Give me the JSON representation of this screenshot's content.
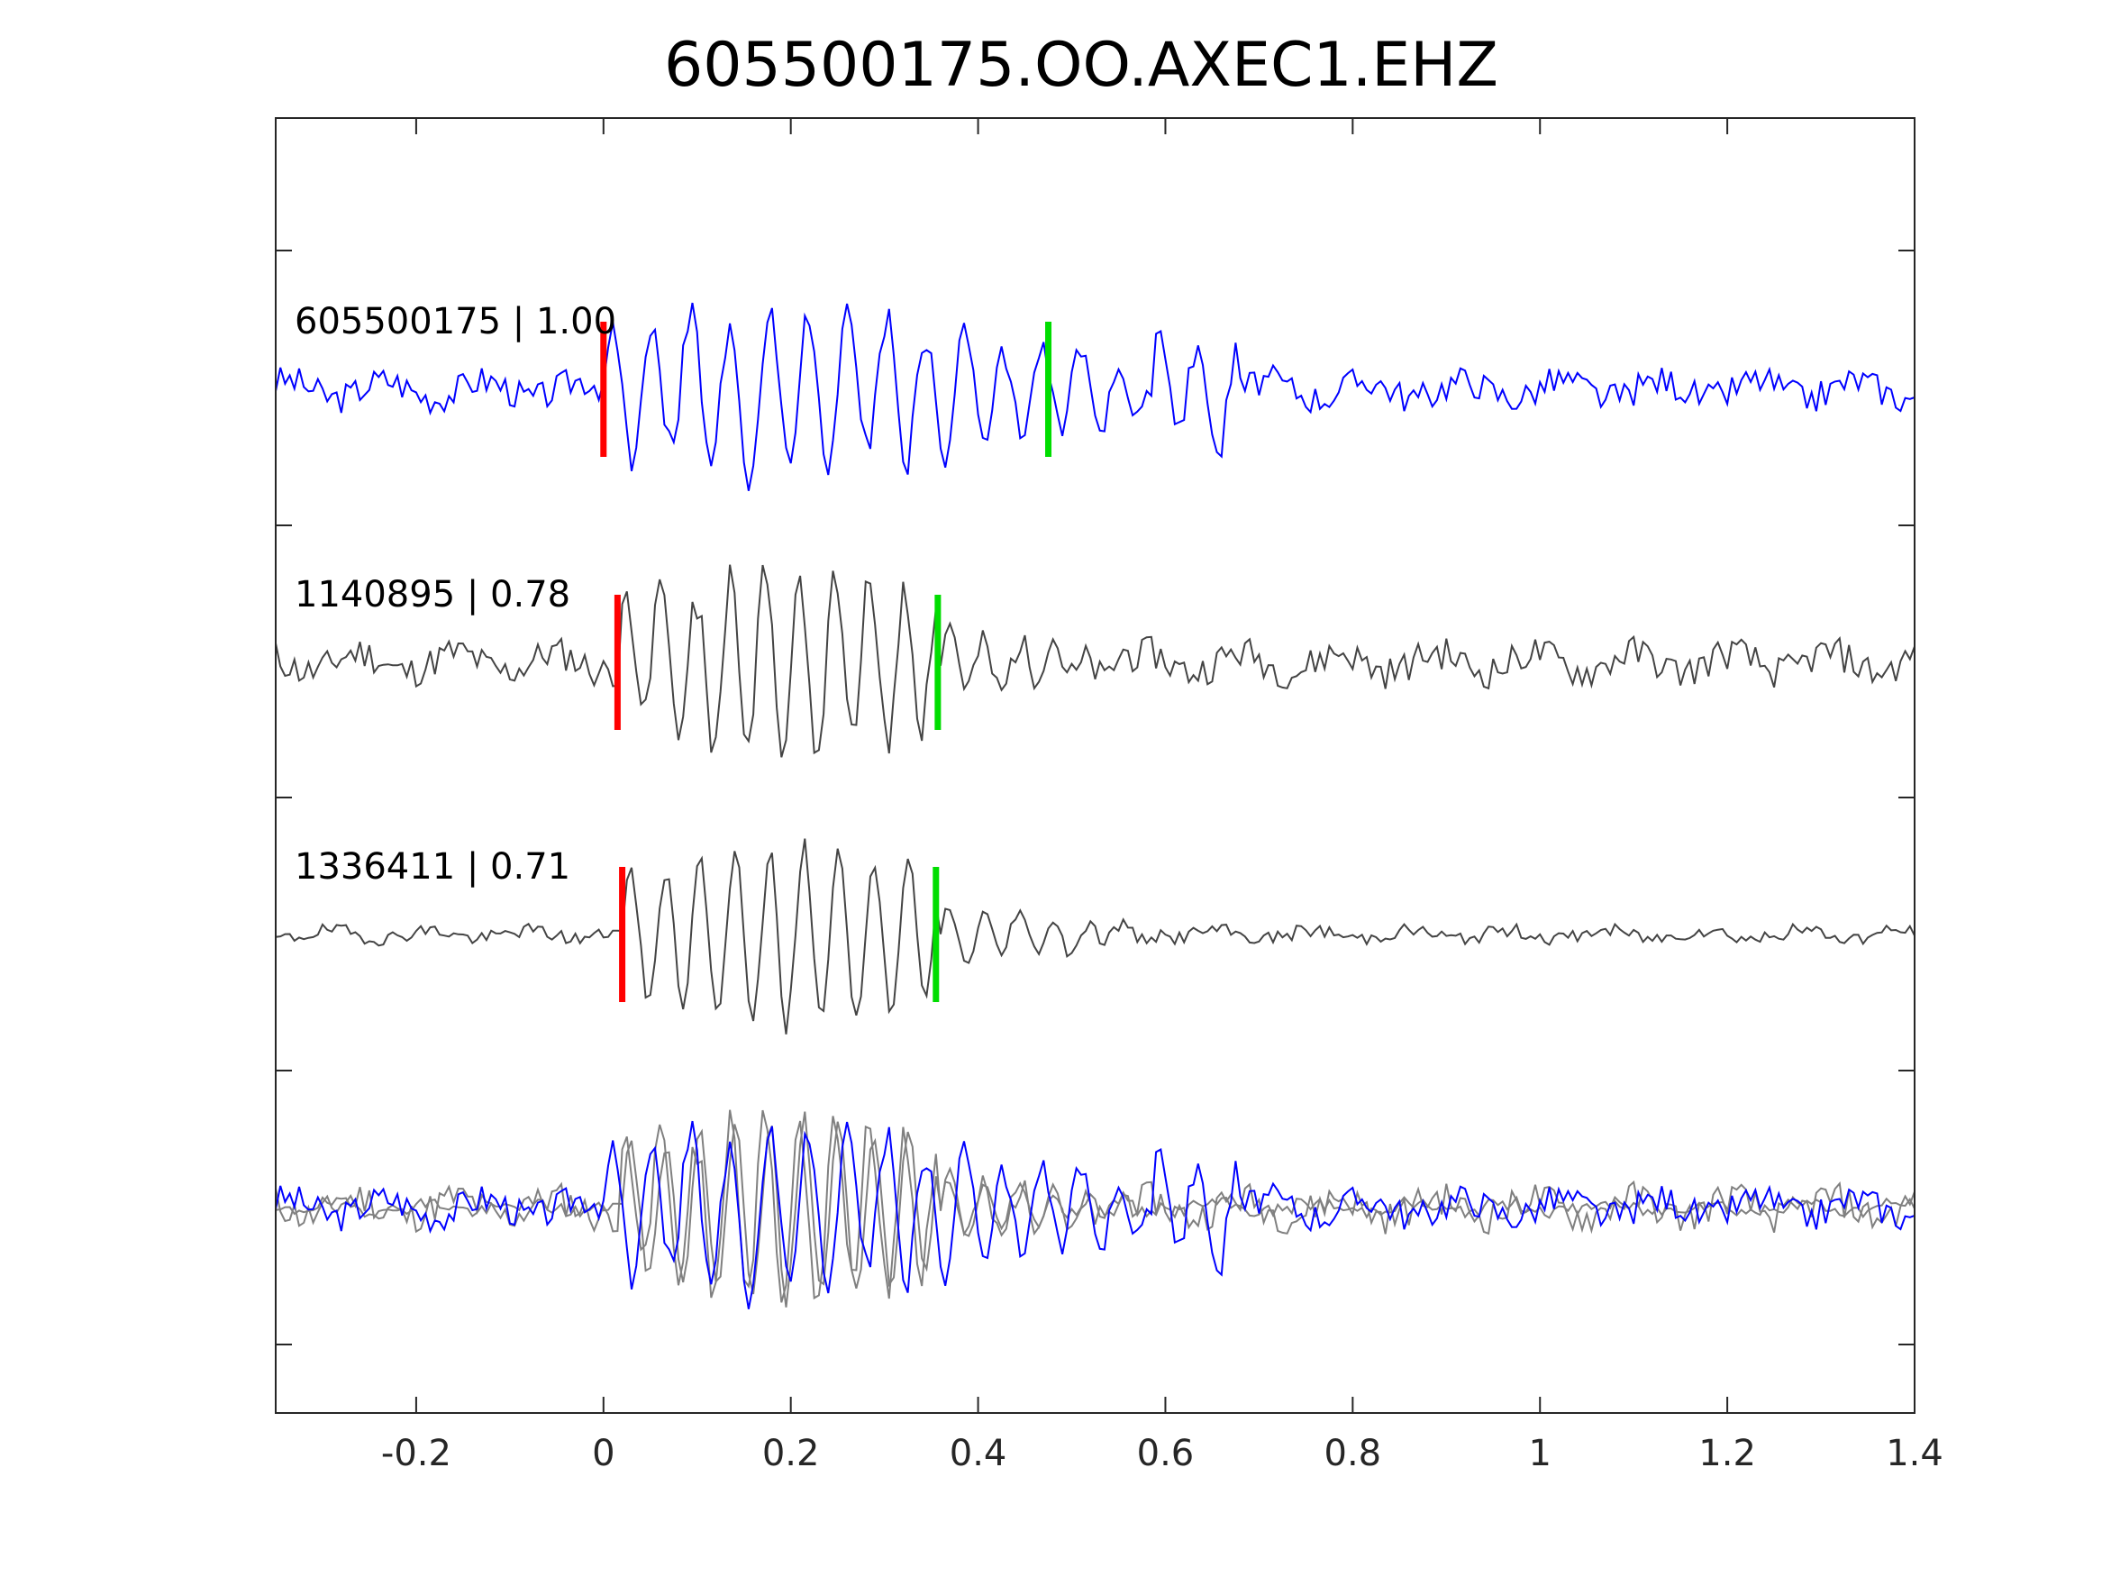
{
  "chart_data": {
    "type": "line",
    "title": "605500175.OO.AXEC1.EHZ",
    "xlabel": "",
    "ylabel": "",
    "xlim": [
      -0.35,
      1.4
    ],
    "xticks": [
      -0.2,
      0,
      0.2,
      0.4,
      0.6,
      0.8,
      1.0,
      1.2,
      1.4
    ],
    "xtick_labels": [
      "-0.2",
      "0",
      "0.2",
      "0.4",
      "0.6",
      "0.8",
      "1",
      "1.2",
      "1.4"
    ],
    "yticks_labeled": false,
    "grid": false,
    "legend": "none",
    "colors": {
      "master": "#0000ff",
      "neighbor": "#444444",
      "overlay_neighbor": "#808080",
      "p_pick": "#ff0000",
      "s_pick": "#00dd00"
    },
    "traces": [
      {
        "id": "605500175",
        "cc": "1.00",
        "label": "605500175 | 1.00",
        "role": "master",
        "p_pick": 0.0,
        "s_pick": 0.475,
        "signal_start": 0.0,
        "signal_end": 0.68,
        "noise_amp": 0.11,
        "signal_amp": 0.6,
        "freq": 24,
        "seed": 3
      },
      {
        "id": "1140895",
        "cc": "0.78",
        "label": "1140895 | 0.78",
        "role": "neighbor",
        "p_pick": 0.015,
        "s_pick": 0.357,
        "signal_start": 0.015,
        "signal_end": 0.36,
        "noise_amp": 0.12,
        "signal_amp": 0.62,
        "freq": 27,
        "seed": 11
      },
      {
        "id": "1336411",
        "cc": "0.71",
        "label": "1336411 | 0.71",
        "role": "neighbor",
        "p_pick": 0.02,
        "s_pick": 0.355,
        "signal_start": 0.02,
        "signal_end": 0.36,
        "noise_amp": 0.05,
        "signal_amp": 0.62,
        "freq": 27,
        "seed": 19
      }
    ],
    "overlay": {
      "traces": [
        "605500175",
        "1140895",
        "1336411"
      ]
    }
  }
}
